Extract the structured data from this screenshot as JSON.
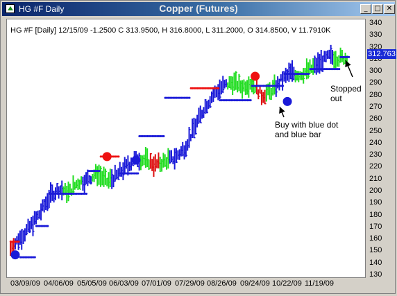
{
  "window": {
    "title": "HG #F Daily",
    "chart_title": "Copper (Futures)",
    "minimize_label": "_",
    "maximize_label": "□",
    "close_label": "✕"
  },
  "header": {
    "quote": "HG #F [Daily] 12/15/09  -1.2500 C 313.9500, H 316.8000, L 311.2000, O 314.8500, V 11.7910K"
  },
  "last_price_label": "312.763",
  "annotations": {
    "stopped_line1": "Stopped",
    "stopped_line2": "out",
    "buy_line1": "Buy with blue dot",
    "buy_line2": "and blue bar"
  },
  "colors": {
    "up_bar": "#1a1ad8",
    "neutral_bar": "#22dd22",
    "down_bar": "#dd1111",
    "stop_dot_blue": "#1a1ad8",
    "stop_dot_red": "#ee1111",
    "signal_buy": "#1a1ad8",
    "signal_sell": "#ee1111"
  },
  "chart_data": {
    "type": "bar",
    "title": "Copper (Futures)",
    "ylim": [
      130,
      340
    ],
    "yticks": [
      340,
      330,
      320,
      310,
      300,
      290,
      280,
      270,
      260,
      250,
      240,
      230,
      220,
      210,
      200,
      190,
      180,
      170,
      160,
      150,
      140,
      130
    ],
    "xticks": [
      "03/09/09",
      "04/06/09",
      "05/05/09",
      "06/03/09",
      "07/01/09",
      "07/29/09",
      "08/26/09",
      "09/24/09",
      "10/22/09",
      "11/19/09"
    ],
    "series": [
      {
        "values": [
          [
            0,
            145,
            160,
            "red"
          ],
          [
            6,
            150,
            172,
            "blue"
          ],
          [
            12,
            160,
            180,
            "blue"
          ],
          [
            18,
            170,
            192,
            "blue"
          ],
          [
            24,
            180,
            210,
            "blue"
          ],
          [
            30,
            190,
            214,
            "blue"
          ],
          [
            36,
            188,
            210,
            "green"
          ],
          [
            42,
            195,
            220,
            "green"
          ],
          [
            48,
            198,
            222,
            "blue"
          ],
          [
            54,
            205,
            225,
            "green"
          ],
          [
            60,
            198,
            218,
            "green"
          ],
          [
            66,
            200,
            226,
            "blue"
          ],
          [
            72,
            210,
            232,
            "blue"
          ],
          [
            78,
            215,
            240,
            "blue"
          ],
          [
            84,
            220,
            232,
            "green"
          ],
          [
            90,
            214,
            230,
            "red"
          ],
          [
            96,
            218,
            232,
            "green"
          ],
          [
            102,
            220,
            236,
            "blue"
          ],
          [
            108,
            225,
            246,
            "blue"
          ],
          [
            114,
            240,
            265,
            "blue"
          ],
          [
            120,
            255,
            282,
            "blue"
          ],
          [
            126,
            270,
            292,
            "blue"
          ],
          [
            132,
            275,
            300,
            "blue"
          ],
          [
            138,
            282,
            300,
            "green"
          ],
          [
            144,
            278,
            296,
            "green"
          ],
          [
            150,
            283,
            300,
            "green"
          ],
          [
            156,
            272,
            288,
            "red"
          ],
          [
            162,
            275,
            292,
            "green"
          ],
          [
            168,
            284,
            300,
            "blue"
          ],
          [
            174,
            288,
            310,
            "blue"
          ],
          [
            180,
            290,
            305,
            "green"
          ],
          [
            186,
            295,
            308,
            "green"
          ],
          [
            192,
            298,
            316,
            "blue"
          ],
          [
            198,
            305,
            320,
            "blue"
          ],
          [
            204,
            304,
            318,
            "green"
          ],
          [
            210,
            306,
            318,
            "green"
          ]
        ]
      }
    ],
    "stop_dots": [
      {
        "x_index": 0,
        "y": 158,
        "color": "red"
      },
      {
        "x_index": 6,
        "y": 145,
        "color": "blue"
      },
      {
        "x_index": 16,
        "y": 171,
        "color": "blue"
      },
      {
        "x_index": 24,
        "y": 198,
        "color": "blue"
      },
      {
        "x_index": 36,
        "y": 198,
        "color": "blue"
      },
      {
        "x_index": 48,
        "y": 217,
        "color": "blue"
      },
      {
        "x_index": 56,
        "y": 229,
        "color": "red"
      },
      {
        "x_index": 68,
        "y": 215,
        "color": "blue"
      },
      {
        "x_index": 80,
        "y": 246,
        "color": "blue"
      },
      {
        "x_index": 96,
        "y": 278,
        "color": "blue"
      },
      {
        "x_index": 112,
        "y": 286,
        "color": "red"
      },
      {
        "x_index": 130,
        "y": 276,
        "color": "blue"
      },
      {
        "x_index": 150,
        "y": 288,
        "color": "blue"
      },
      {
        "x_index": 170,
        "y": 298,
        "color": "blue"
      },
      {
        "x_index": 186,
        "y": 302,
        "color": "blue"
      },
      {
        "x_index": 205,
        "y": 312,
        "color": "blue"
      }
    ],
    "signals": [
      {
        "x_index": 3,
        "y": 147,
        "type": "buy"
      },
      {
        "x_index": 60,
        "y": 229,
        "type": "sell"
      },
      {
        "x_index": 78,
        "y": 226,
        "type": "buy"
      },
      {
        "x_index": 152,
        "y": 296,
        "type": "sell"
      },
      {
        "x_index": 172,
        "y": 275,
        "type": "buy"
      }
    ]
  }
}
